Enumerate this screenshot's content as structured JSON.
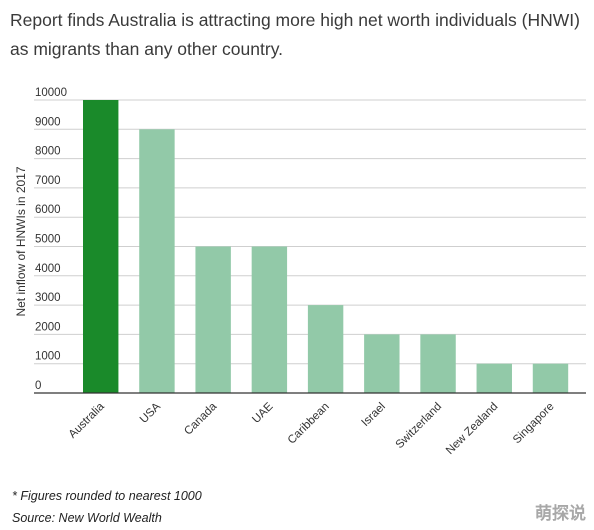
{
  "chart_data": {
    "type": "bar",
    "title": "Report finds Australia is attracting more high net worth individuals (HNWI) as migrants than any other country.",
    "ylabel": "Net inflow of HNWIs in 2017",
    "xlabel": "",
    "categories": [
      "Australia",
      "USA",
      "Canada",
      "UAE",
      "Caribbean",
      "Israel",
      "Switzerland",
      "New Zealand",
      "Singapore"
    ],
    "values": [
      10000,
      9000,
      5000,
      5000,
      3000,
      2000,
      2000,
      1000,
      1000
    ],
    "highlight_category": "Australia",
    "ylim": [
      0,
      10000
    ],
    "yticks": [
      0,
      1000,
      2000,
      3000,
      4000,
      5000,
      6000,
      7000,
      8000,
      9000,
      10000
    ],
    "grid": true,
    "legend": "none",
    "colors": {
      "highlight": "#1a8a2a",
      "default": "#92c9a8",
      "grid": "#cfcfcf",
      "axis": "#333333"
    }
  },
  "footnote": "* Figures rounded to nearest 1000",
  "source": "Source:  New World Wealth",
  "watermark": "萌探说"
}
